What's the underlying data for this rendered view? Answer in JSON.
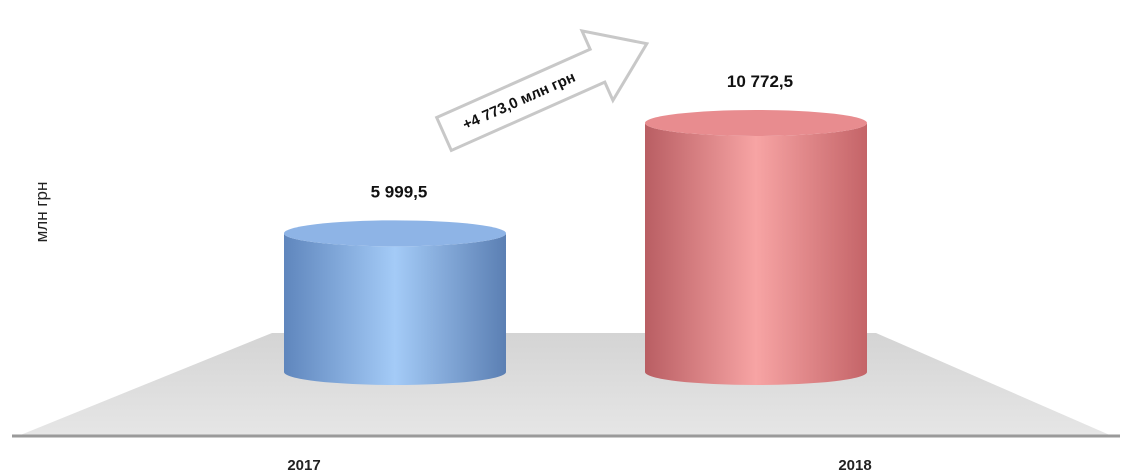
{
  "chart_data": {
    "type": "bar",
    "style": "3d-cylinder",
    "categories": [
      "2017",
      "2018"
    ],
    "values": [
      5999.5,
      10772.5
    ],
    "value_labels": [
      "5 999,5",
      "10 772,5"
    ],
    "series_colors": [
      "#8fb8ec",
      "#ef8f8f"
    ],
    "ylabel": "млн грн",
    "legend": "none",
    "grid": false,
    "annotation": {
      "text": "+4 773,0 млн грн",
      "type": "arrow"
    }
  }
}
